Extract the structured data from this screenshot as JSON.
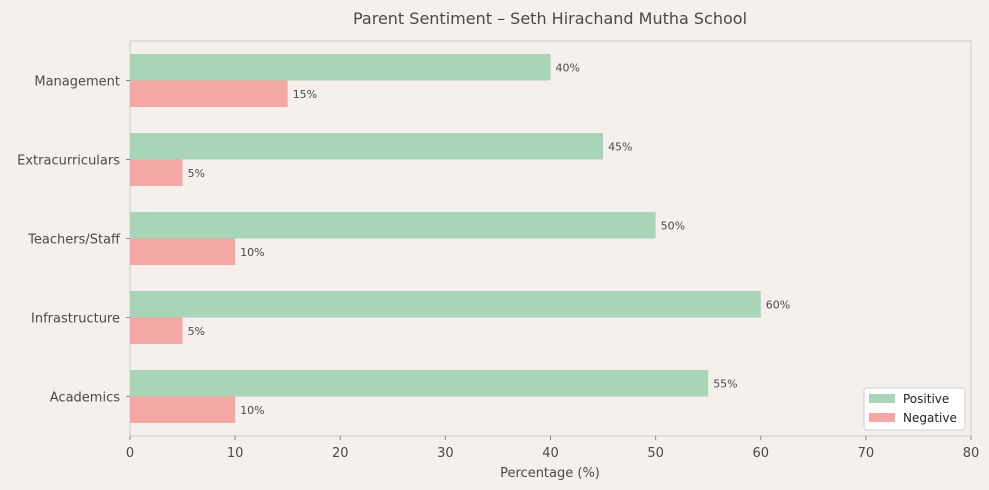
{
  "chart_data": {
    "type": "bar",
    "orientation": "horizontal",
    "title": "Parent Sentiment – Seth Hirachand Mutha School",
    "xlabel": "Percentage (%)",
    "ylabel": "",
    "xlim": [
      0,
      80
    ],
    "xticks": [
      "0",
      "10",
      "20",
      "30",
      "40",
      "50",
      "60",
      "70",
      "80"
    ],
    "categories": [
      "Academics",
      "Infrastructure",
      "Teachers/Staff",
      "Extracurriculars",
      "Management"
    ],
    "series": [
      {
        "name": "Positive",
        "values": [
          55,
          60,
          50,
          45,
          40
        ],
        "labels": [
          "55%",
          "60%",
          "50%",
          "45%",
          "40%"
        ],
        "color": "#a8d5b8"
      },
      {
        "name": "Negative",
        "values": [
          10,
          5,
          10,
          5,
          15
        ],
        "labels": [
          "10%",
          "5%",
          "10%",
          "5%",
          "15%"
        ],
        "color": "#f4a8a3"
      }
    ],
    "legend_position": "bottom-right",
    "grid": false
  }
}
